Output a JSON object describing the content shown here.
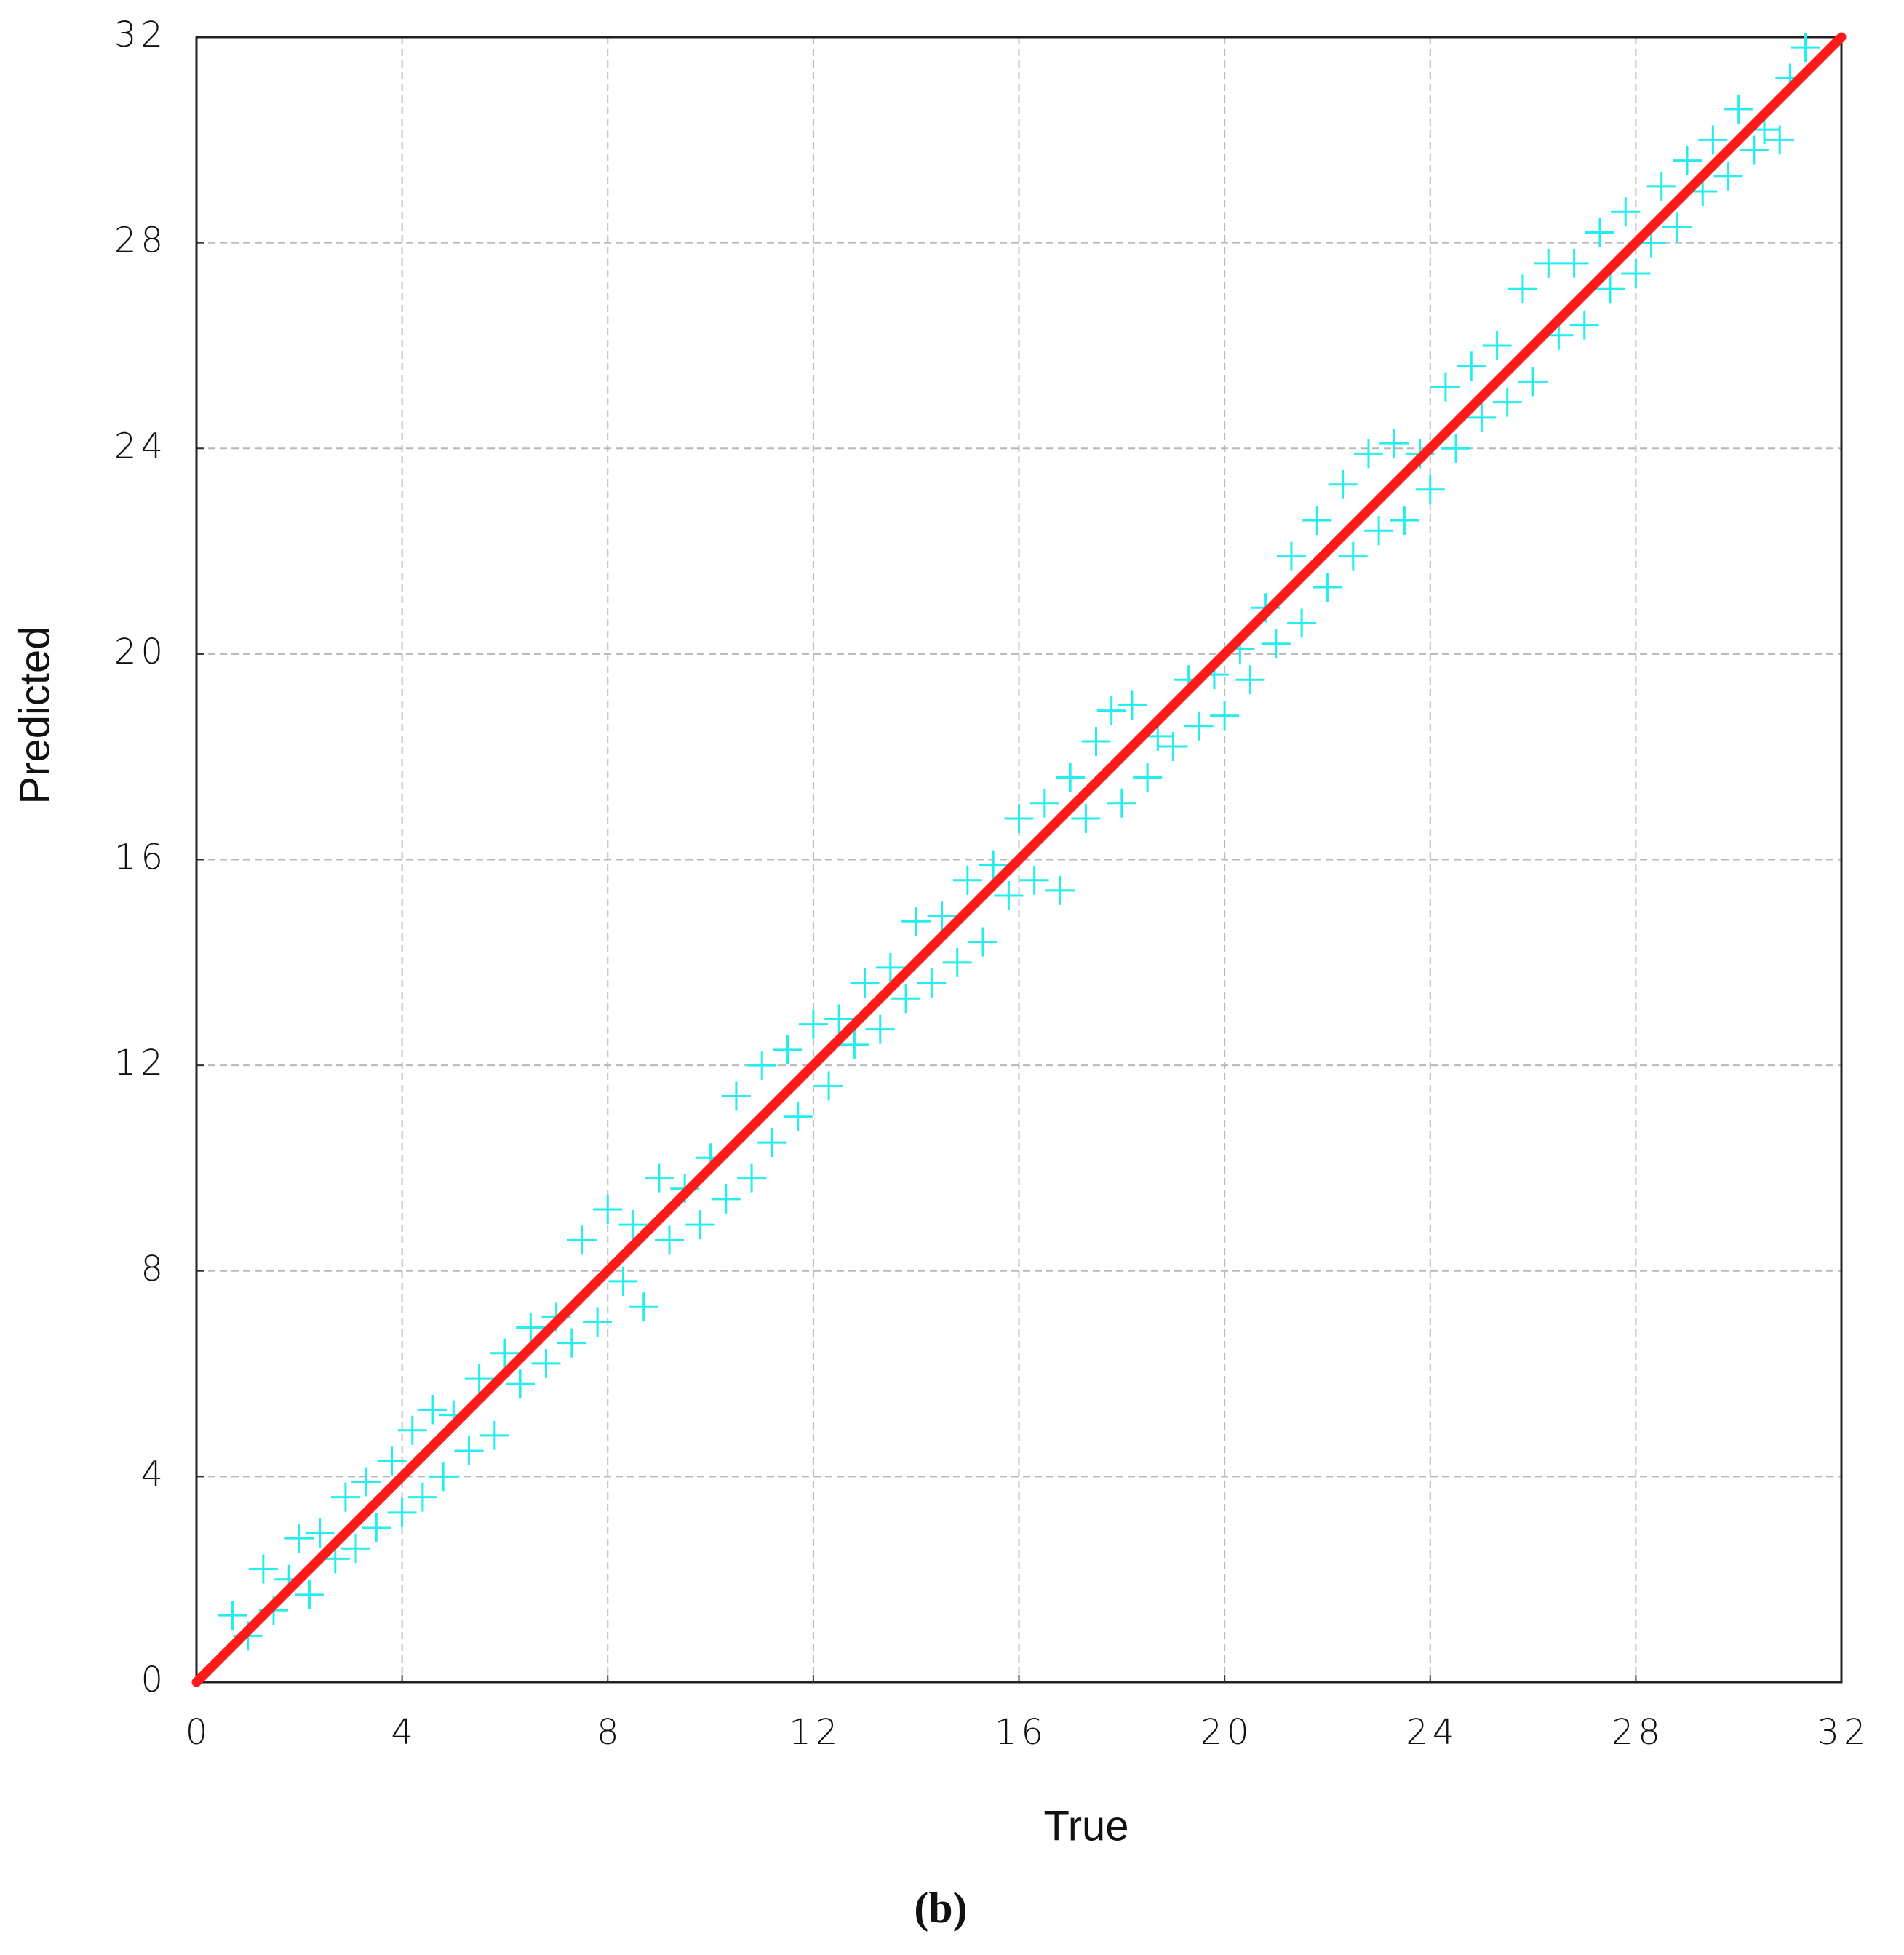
{
  "chart_data": {
    "type": "scatter",
    "xlabel": "True",
    "ylabel": "Predicted",
    "caption": "(b)",
    "xlim": [
      0,
      32
    ],
    "ylim": [
      0,
      32
    ],
    "xticks": [
      0,
      4,
      8,
      12,
      16,
      20,
      24,
      28,
      32
    ],
    "yticks": [
      0,
      4,
      8,
      12,
      16,
      20,
      24,
      28,
      32
    ],
    "grid": true,
    "series": [
      {
        "style": "plus",
        "color": "#22eef0",
        "x": [
          0.7,
          1.0,
          1.3,
          1.5,
          1.8,
          2.0,
          2.2,
          2.4,
          2.7,
          2.9,
          3.1,
          3.3,
          3.5,
          3.8,
          4.0,
          4.2,
          4.4,
          4.6,
          4.8,
          5.0,
          5.3,
          5.5,
          5.8,
          6.0,
          6.3,
          6.5,
          6.8,
          7.0,
          7.3,
          7.5,
          7.8,
          8.0,
          8.3,
          8.5,
          8.7,
          9.0,
          9.2,
          9.5,
          9.8,
          10.0,
          10.3,
          10.5,
          10.8,
          11.0,
          11.2,
          11.5,
          11.7,
          12.0,
          12.3,
          12.5,
          12.8,
          13.0,
          13.3,
          13.5,
          13.8,
          14.0,
          14.3,
          14.5,
          14.8,
          15.0,
          15.3,
          15.5,
          15.8,
          16.0,
          16.3,
          16.5,
          16.8,
          17.0,
          17.3,
          17.5,
          17.8,
          18.0,
          18.2,
          18.5,
          18.7,
          19.0,
          19.3,
          19.5,
          19.8,
          20.0,
          20.3,
          20.5,
          20.8,
          21.0,
          21.3,
          21.5,
          21.8,
          22.0,
          22.3,
          22.5,
          22.8,
          23.0,
          23.3,
          23.5,
          23.8,
          24.0,
          24.3,
          24.5,
          24.8,
          25.0,
          25.3,
          25.5,
          25.8,
          26.0,
          26.3,
          26.5,
          26.8,
          27.0,
          27.3,
          27.5,
          27.8,
          28.0,
          28.3,
          28.5,
          28.8,
          29.0,
          29.3,
          29.5,
          29.8,
          30.0,
          30.3,
          30.5,
          30.8,
          31.0,
          31.3
        ],
        "values": [
          1.3,
          0.9,
          2.2,
          1.4,
          2.0,
          2.8,
          1.7,
          2.9,
          2.4,
          3.6,
          2.6,
          3.9,
          3.0,
          4.3,
          3.3,
          4.9,
          3.6,
          5.3,
          4.0,
          5.2,
          4.5,
          5.9,
          4.8,
          6.4,
          5.8,
          6.9,
          6.2,
          7.1,
          6.6,
          8.6,
          7.0,
          9.2,
          7.8,
          8.9,
          7.3,
          9.8,
          8.6,
          9.6,
          8.9,
          10.2,
          9.4,
          11.4,
          9.8,
          12.0,
          10.5,
          12.3,
          11.0,
          12.8,
          11.6,
          12.9,
          12.4,
          13.6,
          12.7,
          13.9,
          13.3,
          14.8,
          13.6,
          14.9,
          14.0,
          15.6,
          14.4,
          15.9,
          15.3,
          16.8,
          15.6,
          17.1,
          15.4,
          17.6,
          16.8,
          18.3,
          18.9,
          17.1,
          19.0,
          17.6,
          18.4,
          18.2,
          19.5,
          18.6,
          19.6,
          18.8,
          20.1,
          19.5,
          20.9,
          20.2,
          21.9,
          20.6,
          22.6,
          21.3,
          23.3,
          21.9,
          23.9,
          22.4,
          24.1,
          22.6,
          23.9,
          23.2,
          25.2,
          24.0,
          25.6,
          24.6,
          26.0,
          24.9,
          27.1,
          25.3,
          27.6,
          26.2,
          27.6,
          26.4,
          28.2,
          27.1,
          28.6,
          27.4,
          28.0,
          29.1,
          28.3,
          29.6,
          29.0,
          30.0,
          29.3,
          30.6,
          29.8,
          30.2,
          30.0,
          31.2,
          31.8
        ]
      },
      {
        "style": "line",
        "color": "#ff1a1a",
        "x": [
          0,
          32
        ],
        "values": [
          0,
          32
        ]
      }
    ]
  }
}
